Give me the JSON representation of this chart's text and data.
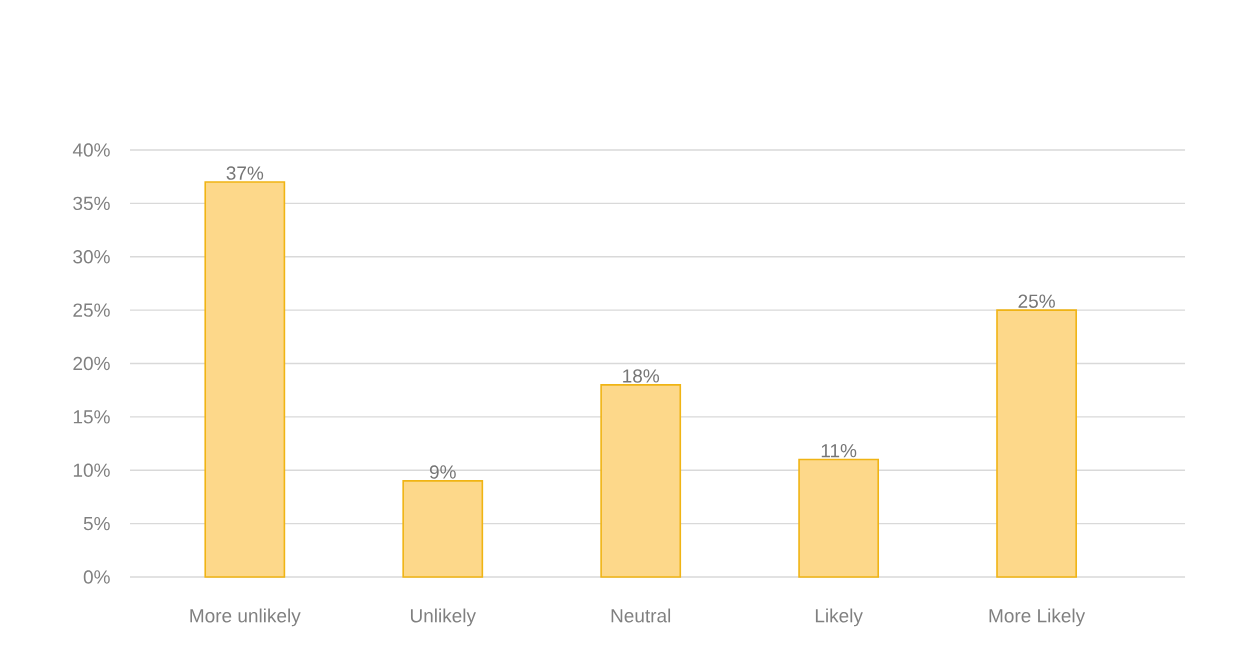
{
  "chart_data": {
    "type": "bar",
    "categories": [
      "More unlikely",
      "Unlikely",
      "Neutral",
      "Likely",
      "More Likely"
    ],
    "values": [
      37,
      9,
      18,
      11,
      25
    ],
    "value_labels": [
      "37%",
      "9%",
      "18%",
      "11%",
      "25%"
    ],
    "color": "#fdd88a",
    "ylim": [
      0,
      40
    ],
    "yticks": [
      {
        "value": 0,
        "label": "0%"
      },
      {
        "value": 5,
        "label": "5%"
      },
      {
        "value": 10,
        "label": "10%"
      },
      {
        "value": 15,
        "label": "15%"
      },
      {
        "value": 20,
        "label": "20%"
      },
      {
        "value": 25,
        "label": "25%"
      },
      {
        "value": 30,
        "label": "30%"
      },
      {
        "value": 35,
        "label": "35%"
      },
      {
        "value": 40,
        "label": "40%"
      }
    ],
    "grid": "y"
  }
}
